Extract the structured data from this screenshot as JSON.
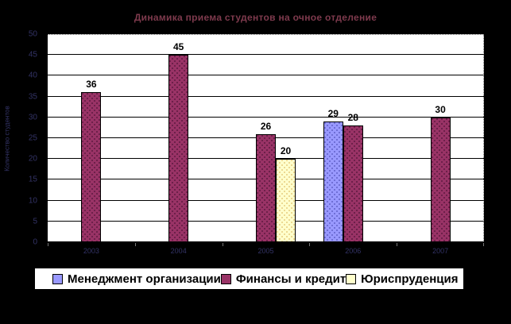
{
  "chart_data": {
    "type": "bar",
    "title": "Динамика приема студентов на очное отделение",
    "ylabel": "Количество студентов",
    "xlabel": "",
    "categories": [
      "2003",
      "2004",
      "2005",
      "2006",
      "2007"
    ],
    "series": [
      {
        "name": "Менеджмент организации",
        "color": "#9999FF",
        "dot_color": "rgba(51,51,153,0.55)",
        "values": [
          null,
          null,
          null,
          29,
          null
        ]
      },
      {
        "name": "Финансы и кредит",
        "color": "#993366",
        "dot_color": "rgba(55,10,40,0.6)",
        "values": [
          36,
          45,
          26,
          28,
          30
        ]
      },
      {
        "name": "Юриспруденция",
        "color": "#FFFFCC",
        "dot_color": "rgba(204,153,51,0.5)",
        "values": [
          null,
          null,
          20,
          null,
          null
        ]
      }
    ],
    "ylim": [
      0,
      50
    ],
    "yticks": [
      0,
      5,
      10,
      15,
      20,
      25,
      30,
      35,
      40,
      45,
      50
    ],
    "grid": "horizontal",
    "legend_position": "bottom"
  },
  "colors": {
    "background": "#000000",
    "plot_background": "#FFFFFF",
    "title_text": "#7E3A4D",
    "axis_label_text": "#333366",
    "gridline": "#000000",
    "value_label_text": "#000000",
    "legend_text": "#000000"
  }
}
